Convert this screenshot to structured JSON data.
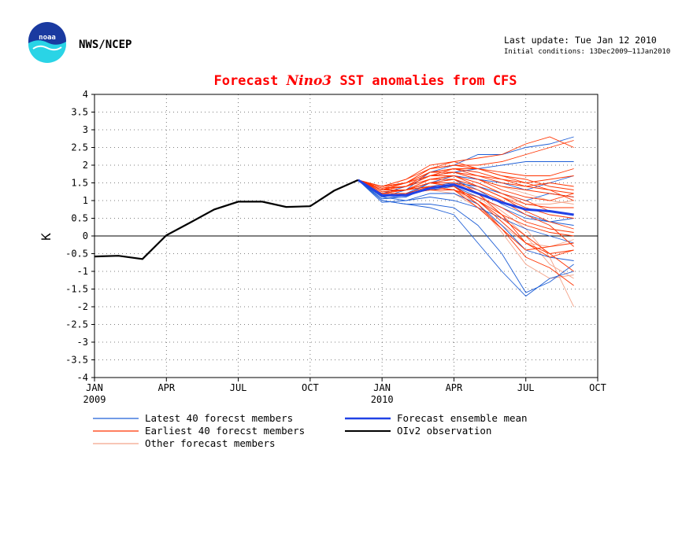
{
  "header": {
    "agency": "NWS/NCEP",
    "logo_text": "noaa",
    "last_update": "Last update: Tue Jan 12 2010",
    "initial_conditions": "Initial conditions: 13Dec2009–11Jan2010"
  },
  "colors": {
    "title": "#ff0000",
    "latest_members": "#1f5fd6",
    "earliest_members": "#ff3300",
    "other_members": "#f4a48a",
    "ensemble_mean": "#2142e6",
    "observation": "#000000",
    "logo_blue": "#1a3aa0",
    "logo_cyan": "#2ad4e6"
  },
  "chart_data": {
    "type": "line",
    "title": [
      "Forecast ",
      "Nino3",
      " SST anomalies from CFS"
    ],
    "ylabel": "K",
    "xlabel": "",
    "ylim": [
      -4,
      4
    ],
    "yticks": [
      -4,
      -3.5,
      -3,
      -2.5,
      -2,
      -1.5,
      -1,
      -0.5,
      0,
      0.5,
      1,
      1.5,
      2,
      2.5,
      3,
      3.5,
      4
    ],
    "ytick_labels": [
      "-4",
      "-3.5",
      "-3",
      "-2.5",
      "-2",
      "-1.5",
      "-1",
      "-0.5",
      "0",
      "0.5",
      "1",
      "1.5",
      "2",
      "2.5",
      "3",
      "3.5",
      "4"
    ],
    "x_axis": {
      "start": "2009-01",
      "end": "2010-10",
      "ticks": [
        {
          "month": "2009-01",
          "label": "JAN",
          "sublabel": "2009"
        },
        {
          "month": "2009-04",
          "label": "APR",
          "sublabel": ""
        },
        {
          "month": "2009-07",
          "label": "JUL",
          "sublabel": ""
        },
        {
          "month": "2009-10",
          "label": "OCT",
          "sublabel": ""
        },
        {
          "month": "2010-01",
          "label": "JAN",
          "sublabel": "2010"
        },
        {
          "month": "2010-04",
          "label": "APR",
          "sublabel": ""
        },
        {
          "month": "2010-07",
          "label": "JUL",
          "sublabel": ""
        },
        {
          "month": "2010-10",
          "label": "OCT",
          "sublabel": ""
        }
      ]
    },
    "grid": true,
    "zero_line": true,
    "legend": {
      "placement": "bottom",
      "entries": [
        {
          "label": "Latest 40 forecst members",
          "series": "latest"
        },
        {
          "label": "Earliest 40 forecst members",
          "series": "earliest"
        },
        {
          "label": "Other forecast members",
          "series": "other"
        },
        {
          "label": "Forecast ensemble mean",
          "series": "mean"
        },
        {
          "label": "OIv2 observation",
          "series": "observation"
        }
      ]
    },
    "observation": {
      "name": "OIv2 observation",
      "months": [
        "2009-01",
        "2009-02",
        "2009-03",
        "2009-04",
        "2009-05",
        "2009-06",
        "2009-07",
        "2009-08",
        "2009-09",
        "2009-10",
        "2009-11",
        "2009-12"
      ],
      "values": [
        -0.58,
        -0.56,
        -0.65,
        0.02,
        0.38,
        0.75,
        0.97,
        0.97,
        0.82,
        0.84,
        1.28,
        1.58
      ]
    },
    "ensemble_mean": {
      "name": "Forecast ensemble mean",
      "months": [
        "2009-12",
        "2010-01",
        "2010-02",
        "2010-03",
        "2010-04",
        "2010-05",
        "2010-06",
        "2010-07",
        "2010-08",
        "2010-09"
      ],
      "values": [
        1.58,
        1.15,
        1.15,
        1.35,
        1.45,
        1.2,
        0.95,
        0.75,
        0.7,
        0.6
      ]
    },
    "forecast_members": {
      "months": [
        "2009-12",
        "2010-01",
        "2010-02",
        "2010-03",
        "2010-04",
        "2010-05",
        "2010-06",
        "2010-07",
        "2010-08",
        "2010-09"
      ],
      "latest": [
        [
          1.58,
          1.05,
          1.15,
          1.5,
          1.6,
          1.3,
          0.9,
          0.6,
          0.4,
          0.3
        ],
        [
          1.58,
          0.95,
          1.0,
          1.2,
          1.2,
          0.9,
          0.3,
          -0.4,
          -0.6,
          -0.7
        ],
        [
          1.58,
          1.0,
          0.9,
          0.8,
          0.6,
          -0.2,
          -1.0,
          -1.7,
          -1.2,
          -1.0
        ],
        [
          1.58,
          1.1,
          1.3,
          1.8,
          2.0,
          2.3,
          2.3,
          2.5,
          2.6,
          2.8
        ],
        [
          1.58,
          1.2,
          1.2,
          1.5,
          1.7,
          1.6,
          1.5,
          1.3,
          1.5,
          1.7
        ],
        [
          1.58,
          1.0,
          0.9,
          0.9,
          0.8,
          0.3,
          -0.5,
          -1.6,
          -1.3,
          -0.8
        ],
        [
          1.58,
          1.1,
          1.2,
          1.3,
          1.4,
          1.1,
          0.8,
          0.5,
          0.4,
          0.5
        ],
        [
          1.58,
          1.05,
          1.1,
          1.4,
          1.5,
          1.4,
          1.2,
          1.0,
          1.2,
          1.1
        ],
        [
          1.58,
          1.1,
          1.0,
          1.1,
          1.0,
          0.8,
          0.5,
          0.2,
          0.0,
          -0.2
        ],
        [
          1.58,
          1.2,
          1.4,
          1.7,
          1.8,
          1.9,
          2.0,
          2.1,
          2.1,
          2.1
        ]
      ],
      "earliest": [
        [
          1.58,
          1.3,
          1.4,
          1.8,
          1.9,
          1.7,
          1.5,
          1.4,
          1.3,
          1.2
        ],
        [
          1.58,
          1.4,
          1.5,
          1.9,
          2.0,
          2.0,
          2.1,
          2.3,
          2.5,
          2.7
        ],
        [
          1.58,
          1.3,
          1.4,
          1.6,
          1.7,
          1.4,
          1.1,
          0.7,
          0.4,
          0.2
        ],
        [
          1.58,
          1.2,
          1.3,
          1.5,
          1.6,
          1.2,
          0.6,
          -0.2,
          -0.6,
          -0.4
        ],
        [
          1.58,
          1.35,
          1.5,
          1.9,
          2.1,
          1.9,
          1.7,
          1.6,
          1.4,
          1.3
        ],
        [
          1.58,
          1.3,
          1.3,
          1.4,
          1.4,
          1.0,
          0.5,
          0.0,
          -0.5,
          -1.0
        ],
        [
          1.58,
          1.4,
          1.6,
          2.0,
          2.1,
          2.2,
          2.3,
          2.6,
          2.8,
          2.5
        ],
        [
          1.58,
          1.2,
          1.2,
          1.3,
          1.3,
          1.0,
          0.6,
          0.3,
          0.1,
          0.0
        ],
        [
          1.58,
          1.3,
          1.4,
          1.7,
          1.8,
          1.6,
          1.4,
          1.3,
          1.2,
          1.1
        ],
        [
          1.58,
          1.25,
          1.3,
          1.5,
          1.4,
          0.9,
          0.2,
          -0.6,
          -0.9,
          -1.4
        ],
        [
          1.58,
          1.4,
          1.5,
          1.8,
          1.9,
          1.8,
          1.6,
          1.5,
          1.6,
          1.7
        ],
        [
          1.58,
          1.3,
          1.3,
          1.6,
          1.7,
          1.5,
          1.2,
          0.9,
          0.8,
          0.8
        ],
        [
          1.58,
          1.2,
          1.2,
          1.4,
          1.3,
          0.8,
          0.2,
          -0.4,
          -0.3,
          -0.2
        ],
        [
          1.58,
          1.35,
          1.4,
          1.7,
          1.9,
          1.9,
          1.8,
          1.7,
          1.7,
          1.9
        ],
        [
          1.58,
          1.3,
          1.3,
          1.5,
          1.5,
          1.3,
          1.0,
          0.6,
          0.3,
          -0.3
        ],
        [
          1.58,
          1.4,
          1.6,
          1.9,
          2.0,
          1.9,
          1.7,
          1.5,
          1.3,
          1.0
        ],
        [
          1.58,
          1.25,
          1.3,
          1.6,
          1.6,
          1.4,
          1.1,
          0.8,
          0.6,
          0.5
        ],
        [
          1.58,
          1.3,
          1.5,
          1.8,
          1.8,
          1.6,
          1.3,
          1.1,
          1.0,
          1.2
        ],
        [
          1.58,
          1.2,
          1.3,
          1.5,
          1.4,
          1.0,
          0.4,
          -0.2,
          -0.5,
          -0.4
        ],
        [
          1.58,
          1.4,
          1.5,
          1.7,
          1.8,
          1.7,
          1.6,
          1.4,
          1.5,
          1.4
        ],
        [
          1.58,
          1.35,
          1.4,
          1.7,
          1.7,
          1.5,
          1.2,
          1.0,
          0.7,
          0.6
        ],
        [
          1.58,
          1.3,
          1.3,
          1.4,
          1.3,
          1.1,
          0.8,
          0.4,
          0.2,
          0.1
        ]
      ],
      "other": [
        [
          1.58,
          1.2,
          1.3,
          1.5,
          1.5,
          1.2,
          0.7,
          0.2,
          -0.6,
          -2.0
        ],
        [
          1.58,
          1.1,
          1.2,
          1.4,
          1.3,
          0.9,
          0.1,
          -0.8,
          -1.2,
          -1.1
        ],
        [
          1.58,
          1.2,
          1.4,
          1.6,
          1.7,
          1.6,
          1.4,
          1.2,
          1.0,
          0.9
        ],
        [
          1.58,
          1.15,
          1.2,
          1.3,
          1.2,
          0.8,
          0.3,
          -0.2,
          -0.3,
          -0.1
        ],
        [
          1.58,
          1.3,
          1.4,
          1.6,
          1.6,
          1.4,
          1.1,
          0.9,
          0.9,
          1.0
        ],
        [
          1.58,
          1.2,
          1.2,
          1.4,
          1.4,
          1.1,
          0.6,
          0.0,
          -0.8,
          -1.2
        ]
      ]
    }
  }
}
